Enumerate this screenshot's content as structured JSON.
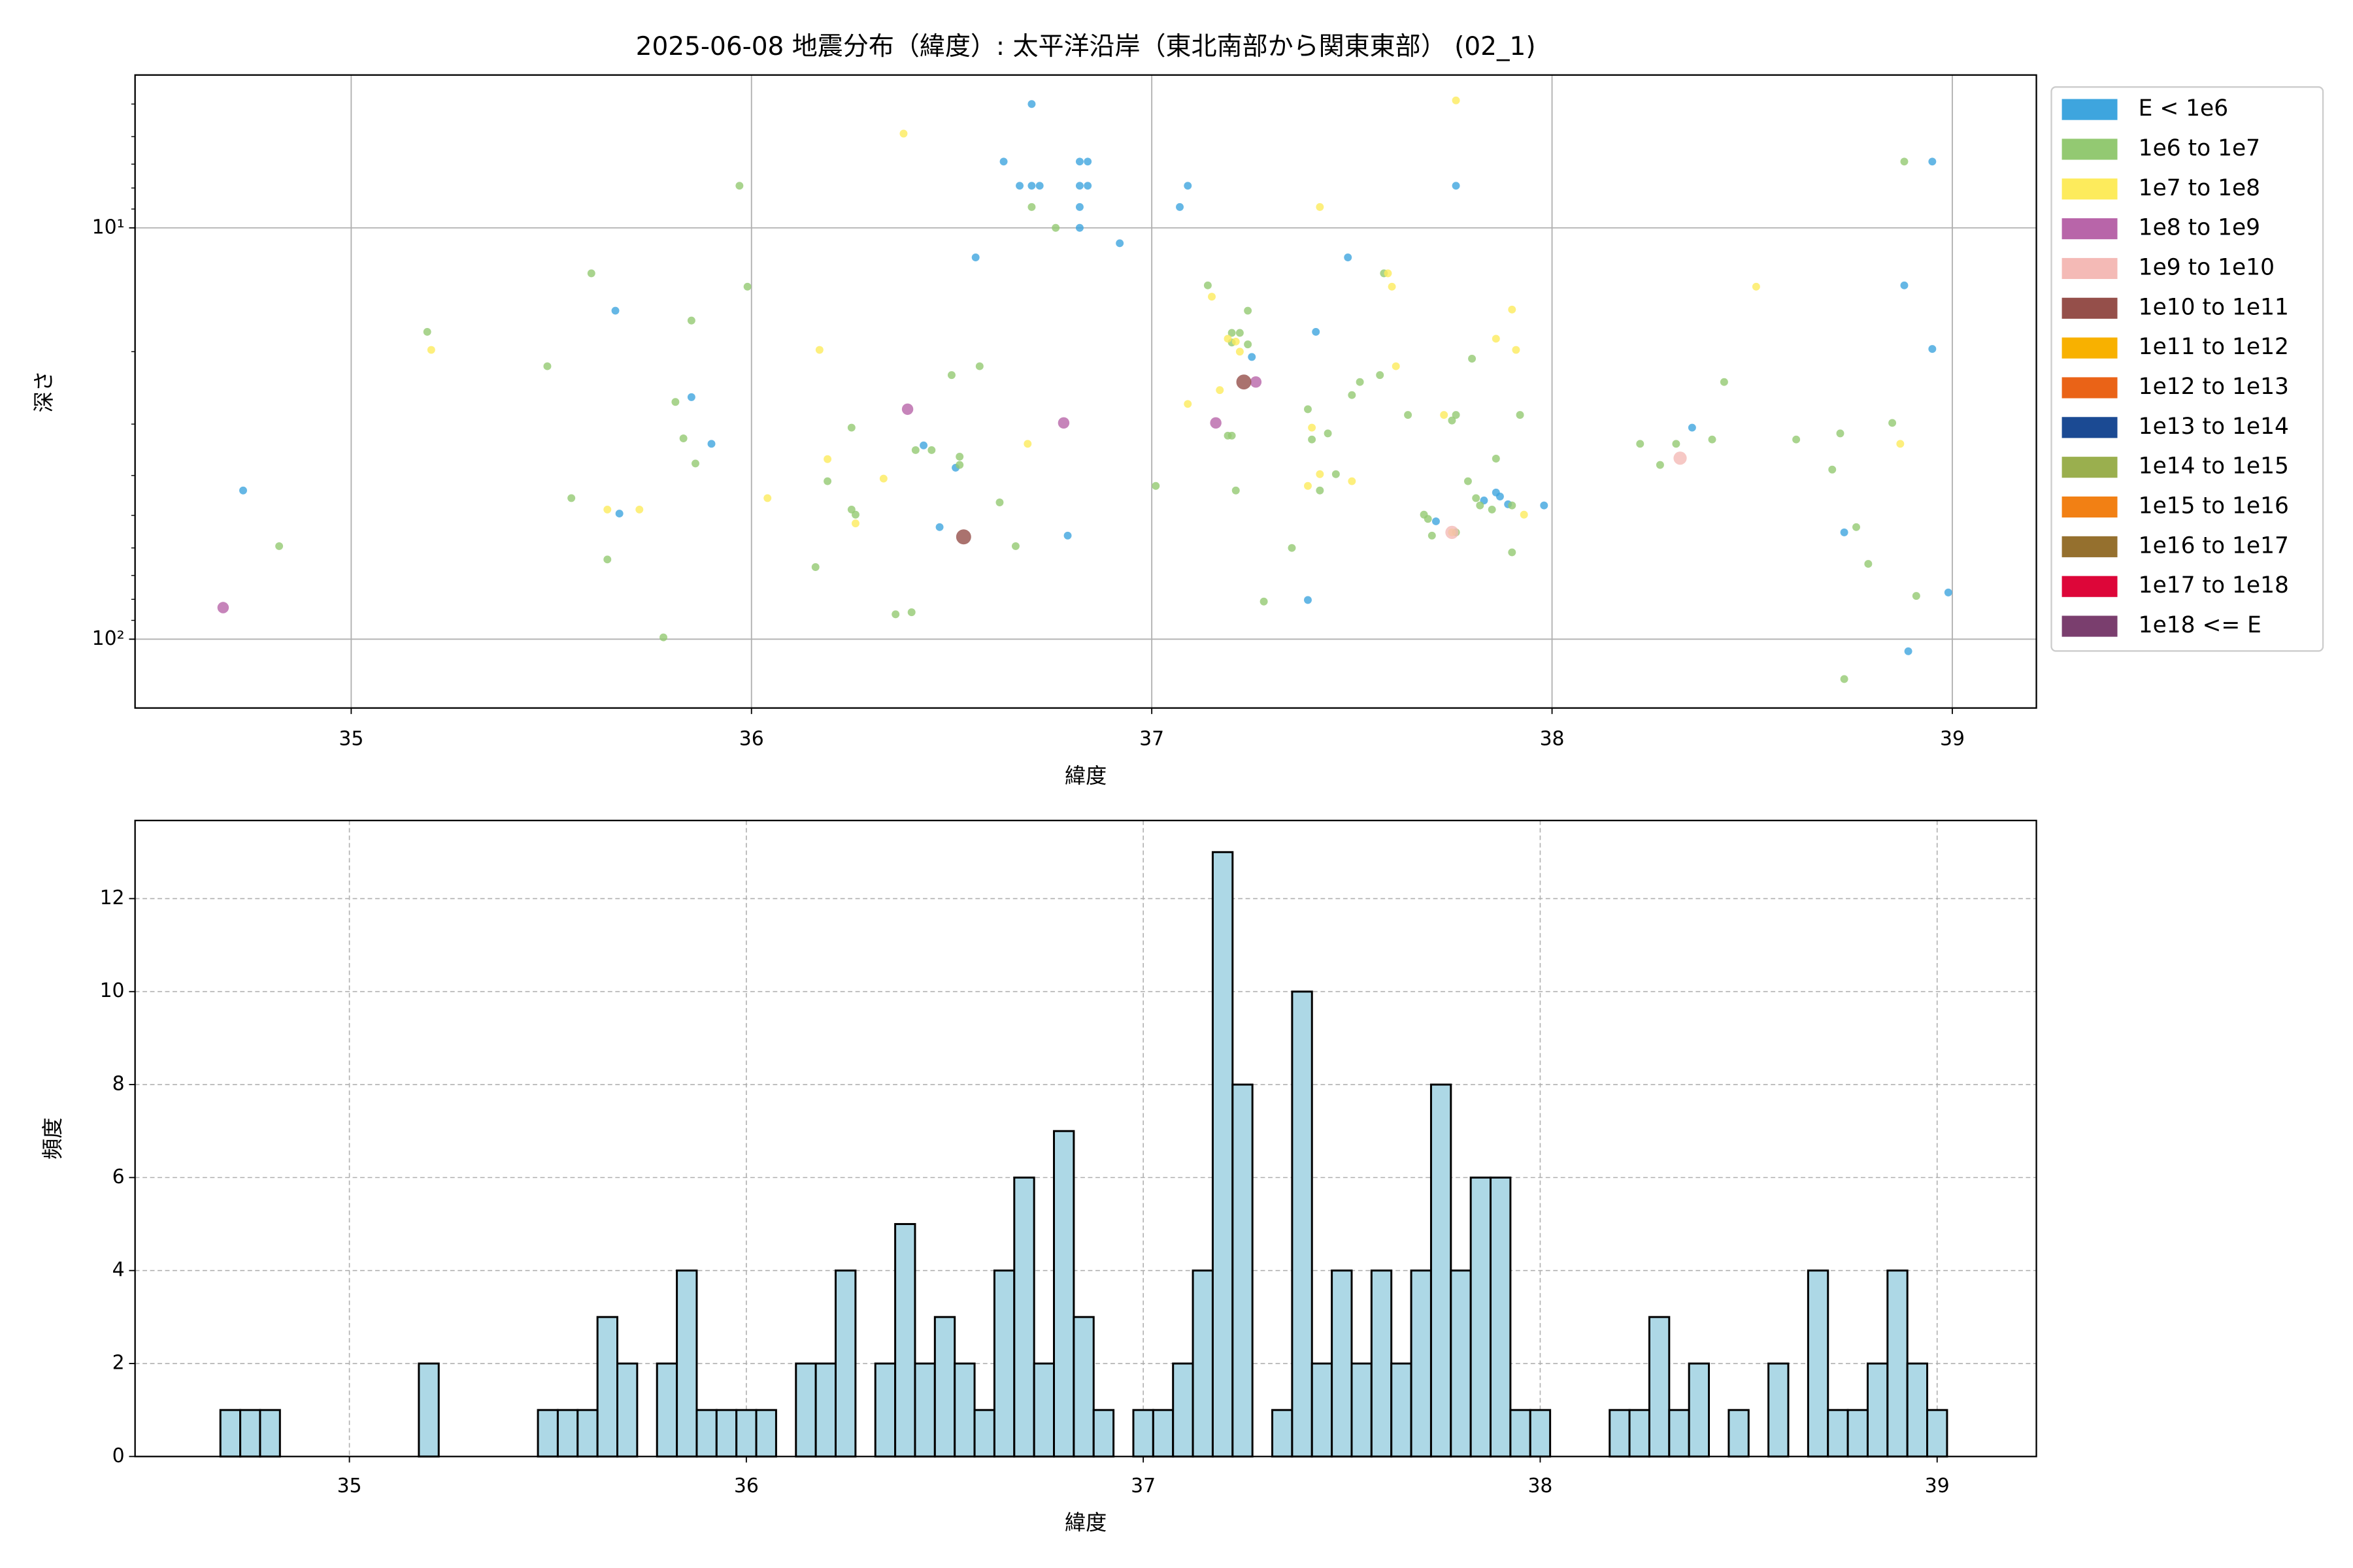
{
  "chart_data": [
    {
      "type": "scatter",
      "title": "2025-06-08 地震分布（緯度）: 太平洋沿岸（東北南部から関東東部） (02_1)",
      "xlabel": "緯度",
      "ylabel": "深さ",
      "xlim": [
        34.46,
        39.21
      ],
      "xticks": [
        35,
        36,
        37,
        38,
        39
      ],
      "ylim": [
        4.25,
        147
      ],
      "y_log": true,
      "y_inverted": true,
      "yticks": [
        {
          "value": 10,
          "label": "10¹"
        },
        {
          "value": 100,
          "label": "10²"
        }
      ],
      "yminorticks": [
        5,
        6,
        7,
        8,
        9,
        20,
        30,
        40,
        50,
        60,
        70,
        80,
        90
      ],
      "grid": true,
      "legend": "outside right",
      "series": [
        {
          "name": "E < 1e6",
          "color": "#3ea5de",
          "x": [
            34.73,
            35.66,
            35.67,
            35.85,
            35.9,
            36.43,
            36.47,
            36.51,
            36.56,
            36.63,
            36.67,
            36.7,
            36.7,
            36.72,
            36.82,
            36.84,
            36.82,
            36.82,
            36.84,
            36.82,
            36.79,
            36.92,
            37.07,
            37.09,
            37.25,
            37.41,
            37.39,
            37.49,
            37.76,
            37.71,
            37.83,
            37.86,
            37.89,
            37.87,
            37.98,
            38.35,
            38.73,
            38.95,
            38.88,
            38.95,
            38.99,
            38.89
          ],
          "y": [
            43.5,
            15.9,
            49.5,
            25.8,
            33.5,
            33.8,
            53.4,
            38.3,
            11.8,
            6.9,
            7.9,
            5.0,
            7.9,
            7.9,
            6.9,
            6.9,
            8.9,
            7.9,
            7.9,
            10,
            56,
            10.9,
            8.9,
            7.9,
            20.6,
            17.9,
            80.3,
            11.8,
            7.9,
            51.7,
            46,
            44,
            47,
            45,
            47.3,
            30.6,
            55,
            6.9,
            13.8,
            19.7,
            77,
            107
          ]
        },
        {
          "name": "1e6 to 1e7",
          "color": "#93c972",
          "x": [
            34.82,
            35.19,
            35.49,
            35.55,
            35.6,
            35.64,
            35.78,
            35.81,
            35.83,
            35.85,
            35.86,
            35.97,
            35.99,
            36.16,
            36.19,
            36.25,
            36.26,
            36.25,
            36.36,
            36.4,
            36.41,
            36.45,
            36.5,
            36.52,
            36.52,
            36.57,
            36.62,
            36.66,
            36.7,
            36.76,
            37.01,
            37.14,
            37.19,
            37.2,
            37.2,
            37.22,
            37.2,
            37.24,
            37.24,
            37.21,
            37.28,
            37.35,
            37.39,
            37.4,
            37.42,
            37.44,
            37.46,
            37.5,
            37.52,
            37.57,
            37.58,
            37.64,
            37.68,
            37.69,
            37.7,
            37.75,
            37.76,
            37.76,
            37.79,
            37.8,
            37.81,
            37.82,
            37.85,
            37.86,
            37.9,
            37.9,
            37.92,
            38.22,
            38.27,
            38.31,
            38.4,
            38.43,
            38.61,
            38.7,
            38.72,
            38.76,
            38.79,
            38.73,
            38.85,
            38.88,
            38.91
          ],
          "y": [
            59.4,
            17.9,
            21.7,
            45.4,
            12.9,
            64,
            99,
            26.5,
            32.5,
            16.8,
            37.4,
            7.9,
            13.9,
            66.8,
            41.3,
            48.4,
            49.8,
            30.6,
            87,
            86,
            34.7,
            34.7,
            22.8,
            36,
            37.7,
            21.7,
            46.5,
            59.4,
            8.9,
            10,
            42.4,
            13.8,
            32,
            32,
            18,
            18,
            19,
            19.2,
            15.9,
            43.5,
            81,
            60,
            27.6,
            32.7,
            43.5,
            31.6,
            39.7,
            25.5,
            23.7,
            22.8,
            12.9,
            28.5,
            49.8,
            51,
            56,
            29.4,
            28.5,
            55,
            41.3,
            20.8,
            45.4,
            47.3,
            48.4,
            36.4,
            47.3,
            61.5,
            28.5,
            33.5,
            37.7,
            33.5,
            32.7,
            23.7,
            32.7,
            38.7,
            31.6,
            53.4,
            65.6,
            125,
            29.8,
            6.9,
            78.5
          ]
        },
        {
          "name": "1e7 to 1e8",
          "color": "#fdeb5c",
          "x": [
            35.2,
            35.64,
            35.72,
            36.04,
            36.17,
            36.19,
            36.26,
            36.33,
            36.38,
            36.69,
            37.09,
            37.15,
            37.17,
            37.19,
            37.21,
            37.22,
            37.42,
            37.39,
            37.4,
            37.42,
            37.5,
            37.59,
            37.6,
            37.61,
            37.73,
            37.75,
            37.76,
            37.86,
            37.9,
            37.91,
            37.93,
            38.51,
            38.87
          ],
          "y": [
            19.8,
            48.4,
            48.4,
            45.4,
            19.8,
            36.5,
            52.3,
            40.7,
            5.9,
            33.5,
            26.8,
            14.7,
            24.8,
            18.6,
            18.9,
            20,
            8.9,
            42.4,
            30.6,
            39.7,
            41.3,
            12.9,
            13.9,
            21.7,
            28.5,
            55,
            4.9,
            18.6,
            15.8,
            19.8,
            49.8,
            13.9,
            33.5
          ]
        },
        {
          "name": "1e8 to 1e9",
          "color": "#b865a9",
          "x": [
            34.68,
            36.39,
            36.78,
            37.16,
            37.26
          ],
          "y": [
            83.8,
            27.6,
            29.8,
            29.8,
            23.7
          ]
        },
        {
          "name": "1e9 to 1e10",
          "color": "#f4bab6",
          "x": [
            38.32,
            37.75
          ],
          "y": [
            36.3,
            55
          ]
        },
        {
          "name": "1e10 to 1e11",
          "color": "#954f4a",
          "x": [
            36.53,
            37.23
          ],
          "y": [
            56.4,
            23.7
          ]
        },
        {
          "name": "1e11 to 1e12",
          "color": "#f8b100",
          "x": [],
          "y": []
        },
        {
          "name": "1e12 to 1e13",
          "color": "#ea6317",
          "x": [],
          "y": []
        },
        {
          "name": "1e13 to 1e14",
          "color": "#1b4a93",
          "x": [],
          "y": []
        },
        {
          "name": "1e14 to 1e15",
          "color": "#9aaf4e",
          "x": [],
          "y": []
        },
        {
          "name": "1e15 to 1e16",
          "color": "#f28014",
          "x": [],
          "y": []
        },
        {
          "name": "1e16 to 1e17",
          "color": "#95702e",
          "x": [],
          "y": []
        },
        {
          "name": "1e17 to 1e18",
          "color": "#dd0639",
          "x": [],
          "y": []
        },
        {
          "name": "1e18 <= E",
          "color": "#7a3e6e",
          "x": [],
          "y": []
        }
      ]
    },
    {
      "type": "histogram",
      "xlabel": "緯度",
      "ylabel": "頻度",
      "color": "#add8e6",
      "edgecolor": "#000000",
      "bins": [
        34.675,
        34.725,
        34.775,
        34.825,
        34.875,
        34.925,
        34.975,
        35.025,
        35.075,
        35.125,
        35.175,
        35.225,
        35.275,
        35.325,
        35.375,
        35.425,
        35.475,
        35.525,
        35.575,
        35.625,
        35.675,
        35.725,
        35.775,
        35.825,
        35.875,
        35.925,
        35.975,
        36.025,
        36.075,
        36.125,
        36.175,
        36.225,
        36.275,
        36.325,
        36.375,
        36.425,
        36.475,
        36.525,
        36.575,
        36.625,
        36.675,
        36.725,
        36.775,
        36.825,
        36.875,
        36.925,
        36.975,
        37.025,
        37.075,
        37.125,
        37.175,
        37.225,
        37.275,
        37.325,
        37.375,
        37.425,
        37.475,
        37.525,
        37.575,
        37.625,
        37.675,
        37.725,
        37.775,
        37.825,
        37.875,
        37.925,
        37.975,
        38.025,
        38.075,
        38.125,
        38.175,
        38.225,
        38.275,
        38.325,
        38.375,
        38.425,
        38.475,
        38.525,
        38.575,
        38.625,
        38.675,
        38.725,
        38.775,
        38.825,
        38.875,
        38.925,
        38.975,
        39.025
      ],
      "values": [
        1,
        1,
        1,
        0,
        0,
        0,
        0,
        0,
        0,
        0,
        2,
        0,
        0,
        0,
        0,
        0,
        1,
        1,
        1,
        3,
        2,
        0,
        2,
        4,
        1,
        1,
        1,
        1,
        0,
        2,
        2,
        4,
        0,
        2,
        5,
        2,
        3,
        2,
        1,
        4,
        6,
        2,
        7,
        3,
        1,
        0,
        1,
        1,
        2,
        4,
        13,
        8,
        0,
        1,
        10,
        2,
        4,
        2,
        4,
        2,
        4,
        8,
        4,
        6,
        6,
        1,
        1,
        0,
        0,
        0,
        1,
        1,
        3,
        1,
        2,
        0,
        1,
        0,
        2,
        0,
        4,
        1,
        1,
        2,
        4,
        2,
        1
      ],
      "xlim": [
        34.46,
        39.25
      ],
      "xticks": [
        35,
        36,
        37,
        38,
        39
      ],
      "ylim": [
        0,
        13.68
      ],
      "yticks": [
        0,
        2,
        4,
        6,
        8,
        10,
        12
      ],
      "grid": "dashed"
    }
  ]
}
